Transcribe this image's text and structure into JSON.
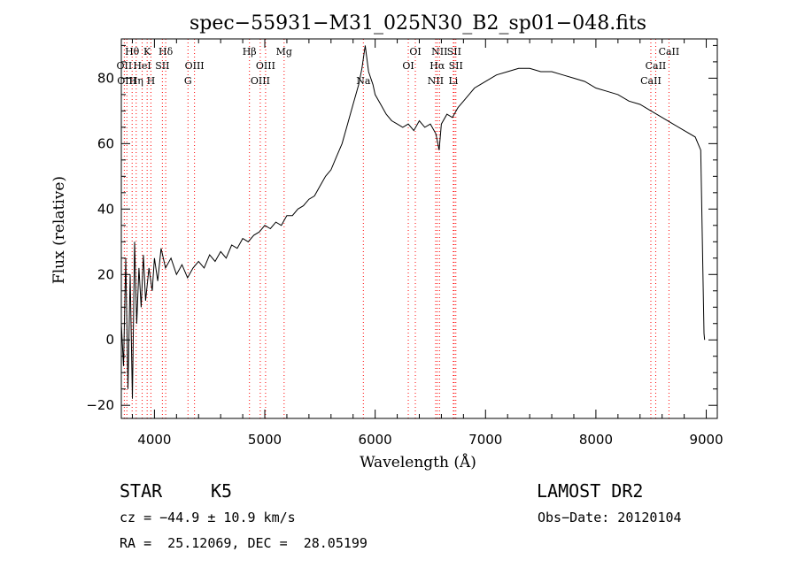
{
  "chart_data": {
    "type": "line",
    "title": "spec−55931−M31_025N30_B2_sp01−048.fits",
    "xlabel": "Wavelength (Å)",
    "ylabel": "Flux (relative)",
    "xlim": [
      3700,
      9100
    ],
    "ylim": [
      -24,
      92
    ],
    "x_ticks": [
      4000,
      5000,
      6000,
      7000,
      8000,
      9000
    ],
    "y_ticks": [
      -20,
      0,
      20,
      40,
      60,
      80
    ],
    "grid": false,
    "series": [
      {
        "points": [
          [
            3700,
            5
          ],
          [
            3720,
            -8
          ],
          [
            3740,
            25
          ],
          [
            3760,
            -15
          ],
          [
            3780,
            20
          ],
          [
            3800,
            -18
          ],
          [
            3820,
            30
          ],
          [
            3840,
            5
          ],
          [
            3860,
            22
          ],
          [
            3880,
            10
          ],
          [
            3900,
            26
          ],
          [
            3920,
            12
          ],
          [
            3950,
            22
          ],
          [
            3980,
            15
          ],
          [
            4000,
            25
          ],
          [
            4030,
            18
          ],
          [
            4060,
            28
          ],
          [
            4100,
            22
          ],
          [
            4150,
            25
          ],
          [
            4200,
            20
          ],
          [
            4250,
            23
          ],
          [
            4300,
            19
          ],
          [
            4350,
            22
          ],
          [
            4400,
            24
          ],
          [
            4450,
            22
          ],
          [
            4500,
            26
          ],
          [
            4550,
            24
          ],
          [
            4600,
            27
          ],
          [
            4650,
            25
          ],
          [
            4700,
            29
          ],
          [
            4750,
            28
          ],
          [
            4800,
            31
          ],
          [
            4850,
            30
          ],
          [
            4900,
            32
          ],
          [
            4950,
            33
          ],
          [
            5000,
            35
          ],
          [
            5050,
            34
          ],
          [
            5100,
            36
          ],
          [
            5150,
            35
          ],
          [
            5200,
            38
          ],
          [
            5250,
            38
          ],
          [
            5300,
            40
          ],
          [
            5350,
            41
          ],
          [
            5400,
            43
          ],
          [
            5450,
            44
          ],
          [
            5500,
            47
          ],
          [
            5550,
            50
          ],
          [
            5600,
            52
          ],
          [
            5650,
            56
          ],
          [
            5700,
            60
          ],
          [
            5750,
            66
          ],
          [
            5800,
            72
          ],
          [
            5850,
            78
          ],
          [
            5880,
            83
          ],
          [
            5910,
            90
          ],
          [
            5940,
            82
          ],
          [
            5980,
            78
          ],
          [
            6000,
            75
          ],
          [
            6050,
            72
          ],
          [
            6100,
            69
          ],
          [
            6150,
            67
          ],
          [
            6200,
            66
          ],
          [
            6250,
            65
          ],
          [
            6300,
            66
          ],
          [
            6350,
            64
          ],
          [
            6400,
            67
          ],
          [
            6450,
            65
          ],
          [
            6500,
            66
          ],
          [
            6550,
            63
          ],
          [
            6580,
            58
          ],
          [
            6600,
            66
          ],
          [
            6650,
            69
          ],
          [
            6700,
            68
          ],
          [
            6750,
            71
          ],
          [
            6800,
            73
          ],
          [
            6850,
            75
          ],
          [
            6900,
            77
          ],
          [
            6950,
            78
          ],
          [
            7000,
            79
          ],
          [
            7100,
            81
          ],
          [
            7200,
            82
          ],
          [
            7300,
            83
          ],
          [
            7400,
            83
          ],
          [
            7500,
            82
          ],
          [
            7600,
            82
          ],
          [
            7700,
            81
          ],
          [
            7800,
            80
          ],
          [
            7900,
            79
          ],
          [
            8000,
            77
          ],
          [
            8100,
            76
          ],
          [
            8200,
            75
          ],
          [
            8300,
            73
          ],
          [
            8400,
            72
          ],
          [
            8500,
            70
          ],
          [
            8600,
            68
          ],
          [
            8700,
            66
          ],
          [
            8800,
            64
          ],
          [
            8900,
            62
          ],
          [
            8950,
            58
          ],
          [
            8970,
            20
          ],
          [
            8980,
            2
          ],
          [
            8985,
            0
          ]
        ]
      }
    ],
    "spectral_lines": [
      {
        "label": "Hθ",
        "wavelength": 3798,
        "row": 1
      },
      {
        "label": "OII",
        "wavelength": 3727,
        "row": 2
      },
      {
        "label": "OIII",
        "wavelength": 3750,
        "row": 3
      },
      {
        "label": "K",
        "wavelength": 3934,
        "row": 1
      },
      {
        "label": "HeI",
        "wavelength": 3889,
        "row": 2
      },
      {
        "label": "Hη",
        "wavelength": 3835,
        "row": 3
      },
      {
        "label": "Hδ",
        "wavelength": 4102,
        "row": 1
      },
      {
        "label": "SII",
        "wavelength": 4072,
        "row": 2
      },
      {
        "label": "H",
        "wavelength": 3968,
        "row": 3
      },
      {
        "label": "OIII",
        "wavelength": 4363,
        "row": 2
      },
      {
        "label": "G",
        "wavelength": 4304,
        "row": 3
      },
      {
        "label": "Hβ",
        "wavelength": 4861,
        "row": 1
      },
      {
        "label": "OIII",
        "wavelength": 5007,
        "row": 2
      },
      {
        "label": "OIII",
        "wavelength": 4959,
        "row": 3
      },
      {
        "label": "Mg",
        "wavelength": 5175,
        "row": 1
      },
      {
        "label": "Na",
        "wavelength": 5893,
        "row": 3
      },
      {
        "label": "OI",
        "wavelength": 6364,
        "row": 1
      },
      {
        "label": "OI",
        "wavelength": 6300,
        "row": 2
      },
      {
        "label": "NII",
        "wavelength": 6583,
        "row": 1
      },
      {
        "label": "SII",
        "wavelength": 6716,
        "row": 1
      },
      {
        "label": "Hα",
        "wavelength": 6563,
        "row": 2
      },
      {
        "label": "SII",
        "wavelength": 6731,
        "row": 2
      },
      {
        "label": "NII",
        "wavelength": 6548,
        "row": 3
      },
      {
        "label": "Li",
        "wavelength": 6708,
        "row": 3
      },
      {
        "label": "CaII",
        "wavelength": 8662,
        "row": 1
      },
      {
        "label": "CaII",
        "wavelength": 8542,
        "row": 2
      },
      {
        "label": "CaII",
        "wavelength": 8498,
        "row": 3
      }
    ],
    "line_marker_color": "#ff0000"
  },
  "info": {
    "class_label": "STAR",
    "subclass": "K5",
    "survey": "LAMOST DR2",
    "cz": "cz = −44.9 ± 10.9 km/s",
    "obs_date": "Obs−Date: 20120104",
    "coords": "RA =  25.12069, DEC =  28.05199"
  }
}
